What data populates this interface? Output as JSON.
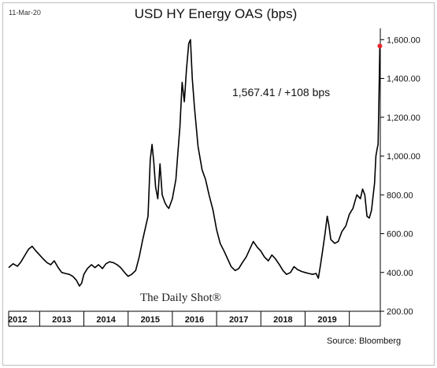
{
  "date_stamp": "11-Mar-20",
  "source": "Source: Bloomberg",
  "watermark": "The Daily Shot®",
  "colors": {
    "line": "#000000",
    "marker": "#e8262b",
    "frame": "#bfbfbf"
  },
  "chart_data": {
    "type": "line",
    "title": "USD HY Energy OAS (bps)",
    "xlabel": "",
    "ylabel": "",
    "xlim": [
      2011.8,
      2020.2
    ],
    "ylim": [
      200,
      1650
    ],
    "y_axis_side": "right",
    "yticks": [
      200,
      400,
      600,
      800,
      1000,
      1200,
      1400,
      1600
    ],
    "ytick_labels": [
      "200.00",
      "400.00",
      "600.00",
      "800.00",
      "1,000.00",
      "1,200.00",
      "1,400.00",
      "1,600.00"
    ],
    "xticks": [
      2012,
      2013,
      2014,
      2015,
      2016,
      2017,
      2018,
      2019
    ],
    "xtick_labels": [
      "2012",
      "2013",
      "2014",
      "2015",
      "2016",
      "2017",
      "2018",
      "2019"
    ],
    "grid": false,
    "annotation": "1,567.41  /  +108 bps",
    "last_point": {
      "x": 2020.19,
      "y": 1567.41
    },
    "series": [
      {
        "values": [
          [
            2011.8,
            425
          ],
          [
            2011.9,
            445
          ],
          [
            2012.0,
            432
          ],
          [
            2012.08,
            455
          ],
          [
            2012.17,
            490
          ],
          [
            2012.25,
            520
          ],
          [
            2012.33,
            535
          ],
          [
            2012.42,
            510
          ],
          [
            2012.5,
            490
          ],
          [
            2012.58,
            470
          ],
          [
            2012.67,
            450
          ],
          [
            2012.75,
            440
          ],
          [
            2012.83,
            460
          ],
          [
            2012.92,
            425
          ],
          [
            2013.0,
            400
          ],
          [
            2013.08,
            395
          ],
          [
            2013.17,
            390
          ],
          [
            2013.25,
            380
          ],
          [
            2013.33,
            360
          ],
          [
            2013.4,
            330
          ],
          [
            2013.45,
            345
          ],
          [
            2013.5,
            390
          ],
          [
            2013.58,
            420
          ],
          [
            2013.67,
            440
          ],
          [
            2013.75,
            425
          ],
          [
            2013.83,
            440
          ],
          [
            2013.92,
            420
          ],
          [
            2014.0,
            445
          ],
          [
            2014.08,
            455
          ],
          [
            2014.17,
            450
          ],
          [
            2014.25,
            440
          ],
          [
            2014.33,
            425
          ],
          [
            2014.42,
            400
          ],
          [
            2014.5,
            380
          ],
          [
            2014.58,
            390
          ],
          [
            2014.67,
            410
          ],
          [
            2014.75,
            480
          ],
          [
            2014.83,
            570
          ],
          [
            2014.9,
            640
          ],
          [
            2014.95,
            690
          ],
          [
            2015.0,
            980
          ],
          [
            2015.04,
            1060
          ],
          [
            2015.08,
            970
          ],
          [
            2015.12,
            840
          ],
          [
            2015.17,
            780
          ],
          [
            2015.22,
            960
          ],
          [
            2015.27,
            800
          ],
          [
            2015.33,
            760
          ],
          [
            2015.38,
            740
          ],
          [
            2015.42,
            730
          ],
          [
            2015.5,
            780
          ],
          [
            2015.58,
            880
          ],
          [
            2015.62,
            1000
          ],
          [
            2015.67,
            1150
          ],
          [
            2015.72,
            1380
          ],
          [
            2015.77,
            1280
          ],
          [
            2015.82,
            1450
          ],
          [
            2015.87,
            1580
          ],
          [
            2015.91,
            1600
          ],
          [
            2015.95,
            1400
          ],
          [
            2016.0,
            1250
          ],
          [
            2016.08,
            1050
          ],
          [
            2016.17,
            930
          ],
          [
            2016.25,
            880
          ],
          [
            2016.33,
            800
          ],
          [
            2016.42,
            720
          ],
          [
            2016.5,
            620
          ],
          [
            2016.58,
            550
          ],
          [
            2016.67,
            510
          ],
          [
            2016.75,
            470
          ],
          [
            2016.83,
            430
          ],
          [
            2016.92,
            410
          ],
          [
            2017.0,
            420
          ],
          [
            2017.08,
            450
          ],
          [
            2017.17,
            480
          ],
          [
            2017.25,
            520
          ],
          [
            2017.33,
            560
          ],
          [
            2017.42,
            530
          ],
          [
            2017.5,
            510
          ],
          [
            2017.58,
            480
          ],
          [
            2017.67,
            460
          ],
          [
            2017.75,
            490
          ],
          [
            2017.83,
            470
          ],
          [
            2017.92,
            440
          ],
          [
            2018.0,
            410
          ],
          [
            2018.08,
            390
          ],
          [
            2018.17,
            400
          ],
          [
            2018.25,
            430
          ],
          [
            2018.33,
            415
          ],
          [
            2018.42,
            405
          ],
          [
            2018.5,
            400
          ],
          [
            2018.58,
            395
          ],
          [
            2018.67,
            390
          ],
          [
            2018.75,
            395
          ],
          [
            2018.8,
            370
          ],
          [
            2018.85,
            440
          ],
          [
            2018.9,
            520
          ],
          [
            2018.95,
            600
          ],
          [
            2019.0,
            690
          ],
          [
            2019.04,
            640
          ],
          [
            2019.08,
            570
          ],
          [
            2019.17,
            550
          ],
          [
            2019.25,
            560
          ],
          [
            2019.33,
            610
          ],
          [
            2019.42,
            640
          ],
          [
            2019.5,
            700
          ],
          [
            2019.58,
            730
          ],
          [
            2019.67,
            800
          ],
          [
            2019.75,
            780
          ],
          [
            2019.8,
            830
          ],
          [
            2019.85,
            800
          ],
          [
            2019.9,
            690
          ],
          [
            2019.95,
            680
          ],
          [
            2020.0,
            720
          ],
          [
            2020.04,
            800
          ],
          [
            2020.07,
            860
          ],
          [
            2020.1,
            1000
          ],
          [
            2020.13,
            1040
          ],
          [
            2020.15,
            1060
          ],
          [
            2020.17,
            1300
          ],
          [
            2020.19,
            1567.41
          ]
        ]
      }
    ]
  }
}
